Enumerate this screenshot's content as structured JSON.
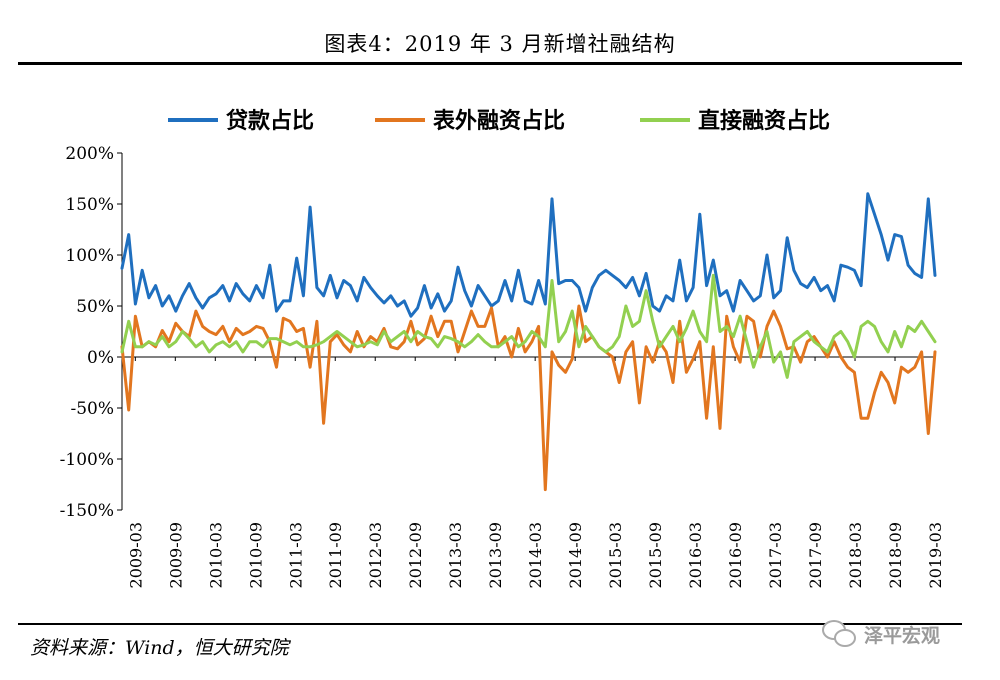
{
  "header": {
    "title": "图表4：2019 年 3 月新增社融结构"
  },
  "footer": {
    "source": "资料来源：Wind，恒大研究院",
    "brand": "泽平宏观"
  },
  "chart_data": {
    "type": "line",
    "legend_position": "top",
    "grid": false,
    "ylim": [
      -150,
      200
    ],
    "yticks": [
      "200%",
      "150%",
      "100%",
      "50%",
      "0%",
      "-50%",
      "-100%",
      "-150%"
    ],
    "ytick_values": [
      200,
      150,
      100,
      50,
      0,
      -50,
      -100,
      -150
    ],
    "xtick_labels": [
      "2009-03",
      "2009-09",
      "2010-03",
      "2010-09",
      "2011-03",
      "2011-09",
      "2012-03",
      "2012-09",
      "2013-03",
      "2013-09",
      "2014-03",
      "2014-09",
      "2015-03",
      "2015-09",
      "2016-03",
      "2016-09",
      "2017-03",
      "2017-09",
      "2018-03",
      "2018-09",
      "2019-03"
    ],
    "x_start": "2009-01",
    "x_end": "2019-03",
    "series": [
      {
        "name": "贷款占比",
        "color": "#1f6fbf",
        "values": [
          87,
          120,
          52,
          85,
          58,
          70,
          50,
          60,
          45,
          60,
          72,
          58,
          48,
          58,
          62,
          70,
          55,
          72,
          62,
          55,
          70,
          58,
          90,
          45,
          55,
          55,
          97,
          60,
          147,
          68,
          60,
          80,
          58,
          75,
          70,
          55,
          78,
          68,
          60,
          53,
          60,
          50,
          55,
          40,
          48,
          70,
          48,
          62,
          45,
          55,
          88,
          65,
          50,
          70,
          60,
          50,
          55,
          75,
          55,
          85,
          55,
          52,
          75,
          52,
          155,
          72,
          75,
          75,
          68,
          45,
          68,
          80,
          85,
          80,
          75,
          68,
          78,
          60,
          82,
          50,
          45,
          60,
          55,
          95,
          55,
          68,
          140,
          70,
          95,
          60,
          65,
          45,
          75,
          65,
          55,
          60,
          100,
          58,
          65,
          117,
          85,
          72,
          68,
          78,
          65,
          70,
          55,
          90,
          88,
          85,
          70,
          160,
          140,
          120,
          95,
          120,
          118,
          90,
          82,
          78,
          155,
          80
        ]
      },
      {
        "name": "表外融资占比",
        "color": "#e2761f",
        "values": [
          10,
          -52,
          40,
          10,
          15,
          10,
          26,
          15,
          33,
          25,
          20,
          45,
          30,
          25,
          22,
          30,
          15,
          28,
          22,
          25,
          30,
          28,
          15,
          -10,
          38,
          35,
          25,
          28,
          -10,
          35,
          -65,
          15,
          22,
          12,
          5,
          25,
          10,
          20,
          15,
          28,
          10,
          8,
          15,
          35,
          12,
          18,
          40,
          20,
          35,
          35,
          5,
          25,
          45,
          30,
          30,
          48,
          10,
          20,
          0,
          28,
          5,
          15,
          30,
          -130,
          5,
          -8,
          -15,
          -2,
          50,
          15,
          20,
          10,
          5,
          0,
          -25,
          5,
          15,
          -45,
          10,
          -5,
          15,
          5,
          -25,
          35,
          -15,
          -2,
          15,
          -60,
          10,
          -70,
          40,
          10,
          -5,
          40,
          35,
          0,
          30,
          45,
          30,
          8,
          10,
          -5,
          15,
          20,
          10,
          0,
          15,
          0,
          -10,
          -15,
          -60,
          -60,
          -35,
          -15,
          -25,
          -45,
          -10,
          -15,
          -10,
          5,
          -75,
          5
        ]
      },
      {
        "name": "直接融资占比",
        "color": "#92d050",
        "values": [
          5,
          35,
          10,
          10,
          15,
          12,
          20,
          10,
          15,
          25,
          18,
          10,
          15,
          5,
          12,
          15,
          10,
          15,
          5,
          15,
          15,
          10,
          18,
          18,
          15,
          12,
          15,
          10,
          10,
          12,
          15,
          20,
          25,
          20,
          15,
          10,
          12,
          15,
          12,
          25,
          15,
          20,
          25,
          15,
          25,
          20,
          18,
          10,
          20,
          18,
          15,
          10,
          15,
          22,
          15,
          10,
          10,
          15,
          20,
          10,
          15,
          25,
          20,
          10,
          75,
          15,
          25,
          45,
          10,
          30,
          20,
          10,
          5,
          10,
          20,
          50,
          30,
          35,
          65,
          35,
          10,
          20,
          30,
          15,
          28,
          45,
          25,
          15,
          80,
          25,
          30,
          20,
          40,
          15,
          -10,
          10,
          25,
          -5,
          5,
          -20,
          15,
          20,
          25,
          15,
          10,
          5,
          20,
          25,
          15,
          0,
          30,
          35,
          30,
          15,
          5,
          25,
          10,
          30,
          25,
          35,
          25,
          15
        ]
      }
    ]
  }
}
